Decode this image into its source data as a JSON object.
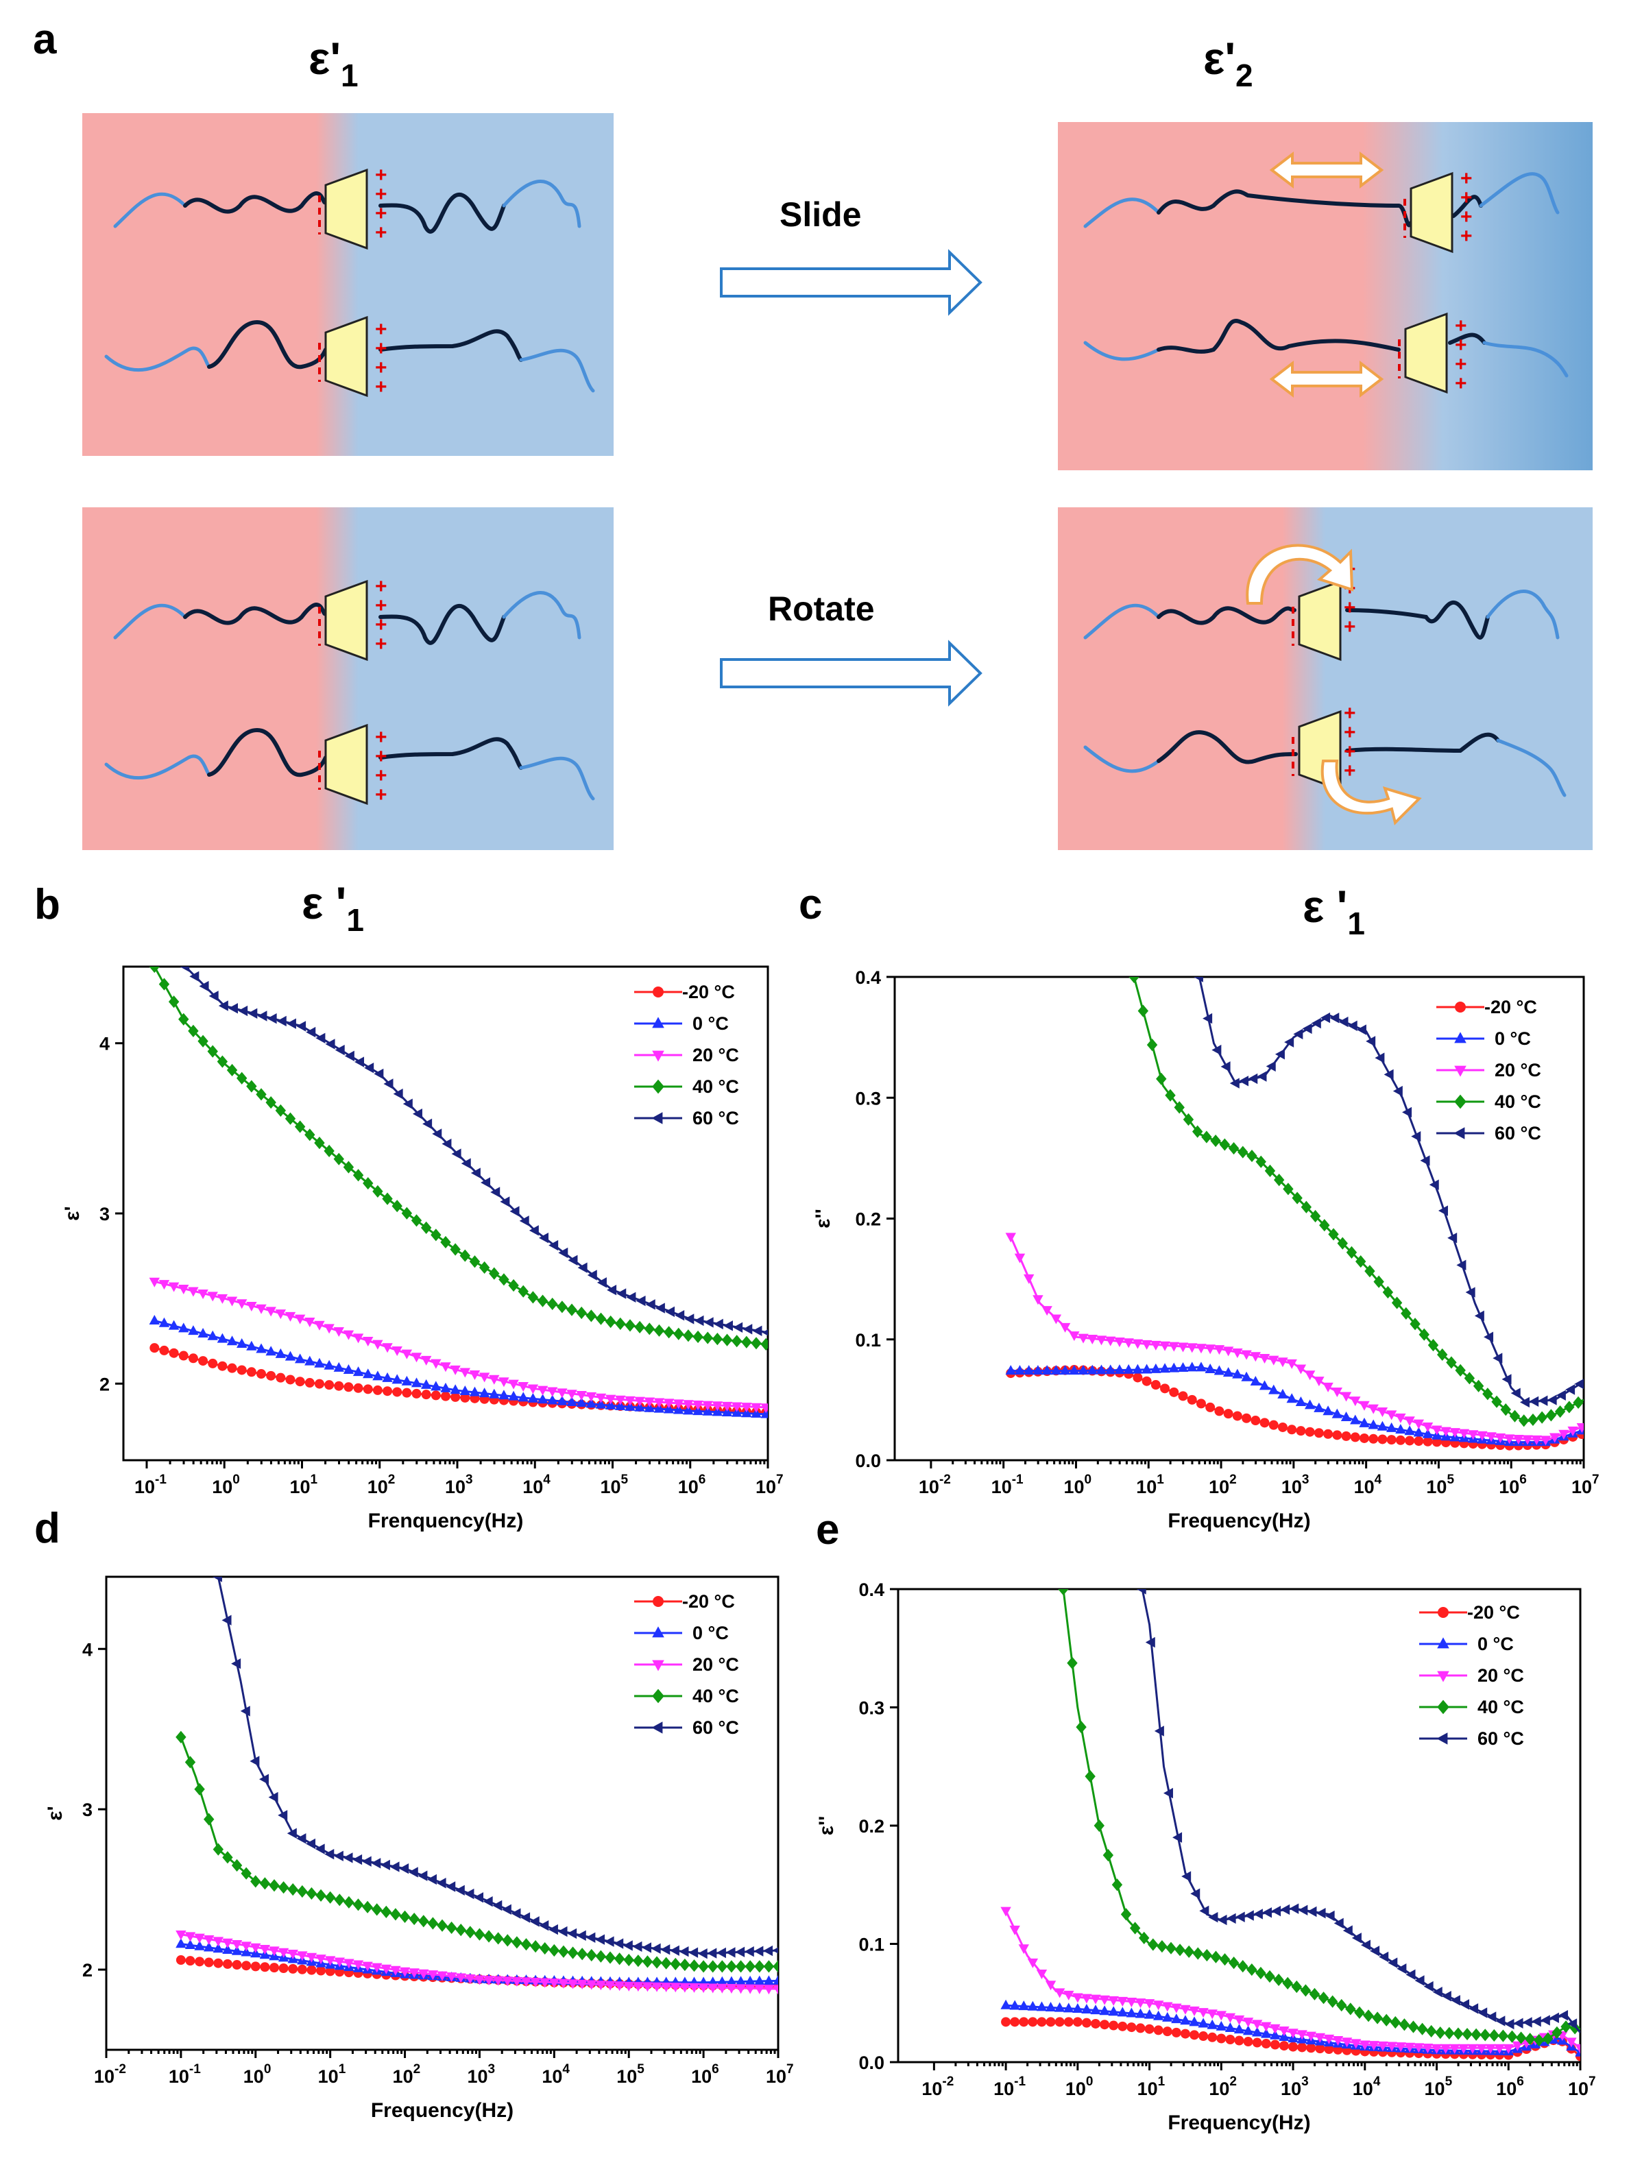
{
  "panel_a": {
    "letter": "a",
    "left_title": "ε'",
    "left_title_sub": "1",
    "right_title": "ε'",
    "right_title_sub": "2",
    "arrow1_label": "Slide",
    "arrow2_label": "Rotate",
    "colors": {
      "red_phase": "#f6aaa9",
      "blue_phase": "#a9c8e6",
      "blue_dark": "#6ea6d6",
      "mesogen": "#fbf7a9",
      "arrow_blue": "#2d7cc7",
      "arrow_orange": "#f0a24a"
    }
  },
  "panel_titles": {
    "b": {
      "letter": "b",
      "title": "ε '",
      "sub": "1"
    },
    "c": {
      "letter": "c",
      "title": "ε '",
      "sub": "1"
    },
    "d": {
      "letter": "d"
    },
    "e": {
      "letter": "e"
    }
  },
  "legend": [
    {
      "label": "-20 °C",
      "color": "#ff2020",
      "marker": "circle"
    },
    {
      "label": "0 °C",
      "color": "#1f33ff",
      "marker": "triangle-up"
    },
    {
      "label": "20 °C",
      "color": "#ff2fff",
      "marker": "triangle-down"
    },
    {
      "label": "40 °C",
      "color": "#119911",
      "marker": "diamond"
    },
    {
      "label": "60 °C",
      "color": "#1a237e",
      "marker": "triangle-left"
    }
  ],
  "chart_data": [
    {
      "id": "b",
      "type": "line",
      "xscale": "log",
      "xlabel": "Frenquency(Hz)",
      "ylabel": "ε'",
      "xlim_exp": [
        -1.3,
        7
      ],
      "ylim": [
        1.55,
        4.45
      ],
      "xticks_exp": [
        -1,
        0,
        1,
        2,
        3,
        4,
        5,
        6,
        7
      ],
      "yticks": [
        2,
        3,
        4
      ],
      "ytick_labels": [
        "2",
        "3",
        "4"
      ],
      "series": [
        {
          "name": "-20 °C",
          "points": [
            [
              -0.9,
              2.21
            ],
            [
              0,
              2.1
            ],
            [
              1,
              2.01
            ],
            [
              2,
              1.96
            ],
            [
              3,
              1.92
            ],
            [
              4,
              1.89
            ],
            [
              5,
              1.87
            ],
            [
              6,
              1.85
            ],
            [
              7,
              1.83
            ]
          ]
        },
        {
          "name": "0 °C",
          "points": [
            [
              -0.9,
              2.37
            ],
            [
              0,
              2.26
            ],
            [
              1,
              2.14
            ],
            [
              2,
              2.04
            ],
            [
              3,
              1.96
            ],
            [
              4,
              1.91
            ],
            [
              5,
              1.87
            ],
            [
              6,
              1.84
            ],
            [
              7,
              1.82
            ]
          ]
        },
        {
          "name": "20 °C",
          "points": [
            [
              -0.9,
              2.6
            ],
            [
              0,
              2.5
            ],
            [
              1,
              2.38
            ],
            [
              2,
              2.23
            ],
            [
              3,
              2.08
            ],
            [
              4,
              1.97
            ],
            [
              5,
              1.91
            ],
            [
              6,
              1.88
            ],
            [
              7,
              1.86
            ]
          ]
        },
        {
          "name": "40 °C",
          "points": [
            [
              -0.9,
              4.45
            ],
            [
              -0.5,
              4.12
            ],
            [
              0,
              3.88
            ],
            [
              1,
              3.5
            ],
            [
              2,
              3.12
            ],
            [
              3,
              2.78
            ],
            [
              4,
              2.5
            ],
            [
              5,
              2.36
            ],
            [
              6,
              2.28
            ],
            [
              7,
              2.23
            ]
          ]
        },
        {
          "name": "60 °C",
          "points": [
            [
              -0.5,
              4.45
            ],
            [
              0,
              4.22
            ],
            [
              1,
              4.1
            ],
            [
              2,
              3.82
            ],
            [
              3,
              3.35
            ],
            [
              4,
              2.9
            ],
            [
              5,
              2.55
            ],
            [
              6,
              2.38
            ],
            [
              7,
              2.3
            ]
          ]
        }
      ]
    },
    {
      "id": "c",
      "type": "line",
      "xscale": "log",
      "xlabel": "Frequency(Hz)",
      "ylabel": "ε''",
      "xlim_exp": [
        -2.5,
        7
      ],
      "ylim": [
        0,
        0.4
      ],
      "xticks_exp": [
        -2,
        -1,
        0,
        1,
        2,
        3,
        4,
        5,
        6,
        7
      ],
      "yticks": [
        0,
        0.1,
        0.2,
        0.3,
        0.4
      ],
      "ytick_labels": [
        "0.0",
        "0.1",
        "0.2",
        "0.3",
        "0.4"
      ],
      "series": [
        {
          "name": "-20 °C",
          "points": [
            [
              -0.9,
              0.072
            ],
            [
              0,
              0.075
            ],
            [
              0.7,
              0.072
            ],
            [
              1.2,
              0.06
            ],
            [
              2,
              0.04
            ],
            [
              3,
              0.025
            ],
            [
              4,
              0.018
            ],
            [
              5,
              0.015
            ],
            [
              6,
              0.012
            ],
            [
              6.5,
              0.013
            ],
            [
              7,
              0.022
            ]
          ]
        },
        {
          "name": "0 °C",
          "points": [
            [
              -0.9,
              0.074
            ],
            [
              0,
              0.074
            ],
            [
              1,
              0.075
            ],
            [
              1.7,
              0.077
            ],
            [
              2.3,
              0.07
            ],
            [
              3,
              0.05
            ],
            [
              4,
              0.03
            ],
            [
              5,
              0.02
            ],
            [
              6,
              0.015
            ],
            [
              6.5,
              0.015
            ],
            [
              7,
              0.025
            ]
          ]
        },
        {
          "name": "20 °C",
          "points": [
            [
              -0.9,
              0.185
            ],
            [
              -0.5,
              0.13
            ],
            [
              0,
              0.102
            ],
            [
              1,
              0.096
            ],
            [
              2,
              0.092
            ],
            [
              3,
              0.08
            ],
            [
              3.5,
              0.06
            ],
            [
              4,
              0.045
            ],
            [
              5,
              0.025
            ],
            [
              6,
              0.018
            ],
            [
              6.5,
              0.017
            ],
            [
              7,
              0.028
            ]
          ]
        },
        {
          "name": "40 °C",
          "points": [
            [
              0.8,
              0.4
            ],
            [
              1.2,
              0.31
            ],
            [
              1.7,
              0.27
            ],
            [
              2.5,
              0.25
            ],
            [
              3,
              0.22
            ],
            [
              4,
              0.16
            ],
            [
              5,
              0.09
            ],
            [
              6,
              0.038
            ],
            [
              6.2,
              0.032
            ],
            [
              6.6,
              0.038
            ],
            [
              7,
              0.05
            ]
          ]
        },
        {
          "name": "60 °C",
          "points": [
            [
              1.7,
              0.4
            ],
            [
              1.9,
              0.345
            ],
            [
              2.2,
              0.312
            ],
            [
              2.6,
              0.318
            ],
            [
              3,
              0.35
            ],
            [
              3.5,
              0.368
            ],
            [
              4,
              0.355
            ],
            [
              4.5,
              0.3
            ],
            [
              5,
              0.22
            ],
            [
              5.5,
              0.13
            ],
            [
              6,
              0.06
            ],
            [
              6.2,
              0.048
            ],
            [
              6.6,
              0.05
            ],
            [
              7,
              0.065
            ]
          ]
        }
      ]
    },
    {
      "id": "d",
      "type": "line",
      "xscale": "log",
      "xlabel": "Frequency(Hz)",
      "ylabel": "ε'",
      "xlim_exp": [
        -2,
        7
      ],
      "ylim": [
        1.5,
        4.45
      ],
      "xticks_exp": [
        -2,
        -1,
        0,
        1,
        2,
        3,
        4,
        5,
        6,
        7
      ],
      "yticks": [
        2,
        3,
        4
      ],
      "ytick_labels": [
        "2",
        "3",
        "4"
      ],
      "series": [
        {
          "name": "-20 °C",
          "points": [
            [
              -1,
              2.06
            ],
            [
              0,
              2.02
            ],
            [
              1,
              1.99
            ],
            [
              2,
              1.96
            ],
            [
              3,
              1.94
            ],
            [
              4,
              1.92
            ],
            [
              5,
              1.91
            ],
            [
              6,
              1.9
            ],
            [
              7,
              1.9
            ]
          ]
        },
        {
          "name": "0 °C",
          "points": [
            [
              -1,
              2.16
            ],
            [
              0,
              2.1
            ],
            [
              1,
              2.03
            ],
            [
              2,
              1.97
            ],
            [
              3,
              1.94
            ],
            [
              4,
              1.93
            ],
            [
              5,
              1.92
            ],
            [
              6,
              1.92
            ],
            [
              7,
              1.93
            ]
          ]
        },
        {
          "name": "20 °C",
          "points": [
            [
              -1,
              2.22
            ],
            [
              0,
              2.14
            ],
            [
              1,
              2.06
            ],
            [
              2,
              1.99
            ],
            [
              3,
              1.94
            ],
            [
              4,
              1.92
            ],
            [
              5,
              1.9
            ],
            [
              6,
              1.89
            ],
            [
              7,
              1.88
            ]
          ]
        },
        {
          "name": "40 °C",
          "points": [
            [
              -1,
              3.45
            ],
            [
              -0.8,
              3.2
            ],
            [
              -0.5,
              2.75
            ],
            [
              0,
              2.55
            ],
            [
              1,
              2.45
            ],
            [
              2,
              2.33
            ],
            [
              3,
              2.22
            ],
            [
              4,
              2.12
            ],
            [
              5,
              2.06
            ],
            [
              6,
              2.02
            ],
            [
              7,
              2.02
            ]
          ]
        },
        {
          "name": "60 °C",
          "points": [
            [
              -0.5,
              4.45
            ],
            [
              -0.2,
              3.8
            ],
            [
              0,
              3.3
            ],
            [
              0.5,
              2.85
            ],
            [
              1,
              2.72
            ],
            [
              2,
              2.63
            ],
            [
              3,
              2.45
            ],
            [
              4,
              2.25
            ],
            [
              5,
              2.15
            ],
            [
              6,
              2.1
            ],
            [
              7,
              2.12
            ]
          ]
        }
      ]
    },
    {
      "id": "e",
      "type": "line",
      "xscale": "log",
      "xlabel": "Frequency(Hz)",
      "ylabel": "ε''",
      "xlim_exp": [
        -2.5,
        7
      ],
      "ylim": [
        0,
        0.4
      ],
      "xticks_exp": [
        -2,
        -1,
        0,
        1,
        2,
        3,
        4,
        5,
        6,
        7
      ],
      "yticks": [
        0,
        0.1,
        0.2,
        0.3,
        0.4
      ],
      "ytick_labels": [
        "0.0",
        "0.1",
        "0.2",
        "0.3",
        "0.4"
      ],
      "series": [
        {
          "name": "-20 °C",
          "points": [
            [
              -1,
              0.034
            ],
            [
              0,
              0.034
            ],
            [
              1,
              0.028
            ],
            [
              2,
              0.02
            ],
            [
              3,
              0.013
            ],
            [
              4,
              0.009
            ],
            [
              5,
              0.007
            ],
            [
              6,
              0.006
            ],
            [
              6.7,
              0.02
            ],
            [
              7,
              0.005
            ]
          ]
        },
        {
          "name": "0 °C",
          "points": [
            [
              -1,
              0.048
            ],
            [
              0,
              0.045
            ],
            [
              1,
              0.04
            ],
            [
              2,
              0.03
            ],
            [
              3,
              0.02
            ],
            [
              4,
              0.013
            ],
            [
              5,
              0.01
            ],
            [
              6,
              0.009
            ],
            [
              6.7,
              0.02
            ],
            [
              7,
              0.008
            ]
          ]
        },
        {
          "name": "20 °C",
          "points": [
            [
              -1,
              0.128
            ],
            [
              -0.7,
              0.09
            ],
            [
              -0.3,
              0.06
            ],
            [
              0,
              0.055
            ],
            [
              1,
              0.05
            ],
            [
              2,
              0.04
            ],
            [
              3,
              0.025
            ],
            [
              4,
              0.015
            ],
            [
              5,
              0.012
            ],
            [
              6,
              0.012
            ],
            [
              6.7,
              0.025
            ],
            [
              7,
              0.012
            ]
          ]
        },
        {
          "name": "40 °C",
          "points": [
            [
              -0.2,
              0.4
            ],
            [
              0,
              0.3
            ],
            [
              0.3,
              0.2
            ],
            [
              0.7,
              0.12
            ],
            [
              1,
              0.1
            ],
            [
              2,
              0.088
            ],
            [
              3,
              0.065
            ],
            [
              4,
              0.04
            ],
            [
              5,
              0.025
            ],
            [
              6,
              0.022
            ],
            [
              6.5,
              0.018
            ],
            [
              6.8,
              0.03
            ],
            [
              7,
              0.028
            ]
          ]
        },
        {
          "name": "60 °C",
          "points": [
            [
              0.9,
              0.4
            ],
            [
              1,
              0.37
            ],
            [
              1.2,
              0.25
            ],
            [
              1.5,
              0.16
            ],
            [
              1.8,
              0.125
            ],
            [
              2,
              0.12
            ],
            [
              2.5,
              0.125
            ],
            [
              3,
              0.13
            ],
            [
              3.5,
              0.125
            ],
            [
              4,
              0.1
            ],
            [
              5,
              0.06
            ],
            [
              6,
              0.032
            ],
            [
              6.5,
              0.035
            ],
            [
              6.8,
              0.04
            ],
            [
              7,
              0.025
            ]
          ]
        }
      ]
    }
  ]
}
